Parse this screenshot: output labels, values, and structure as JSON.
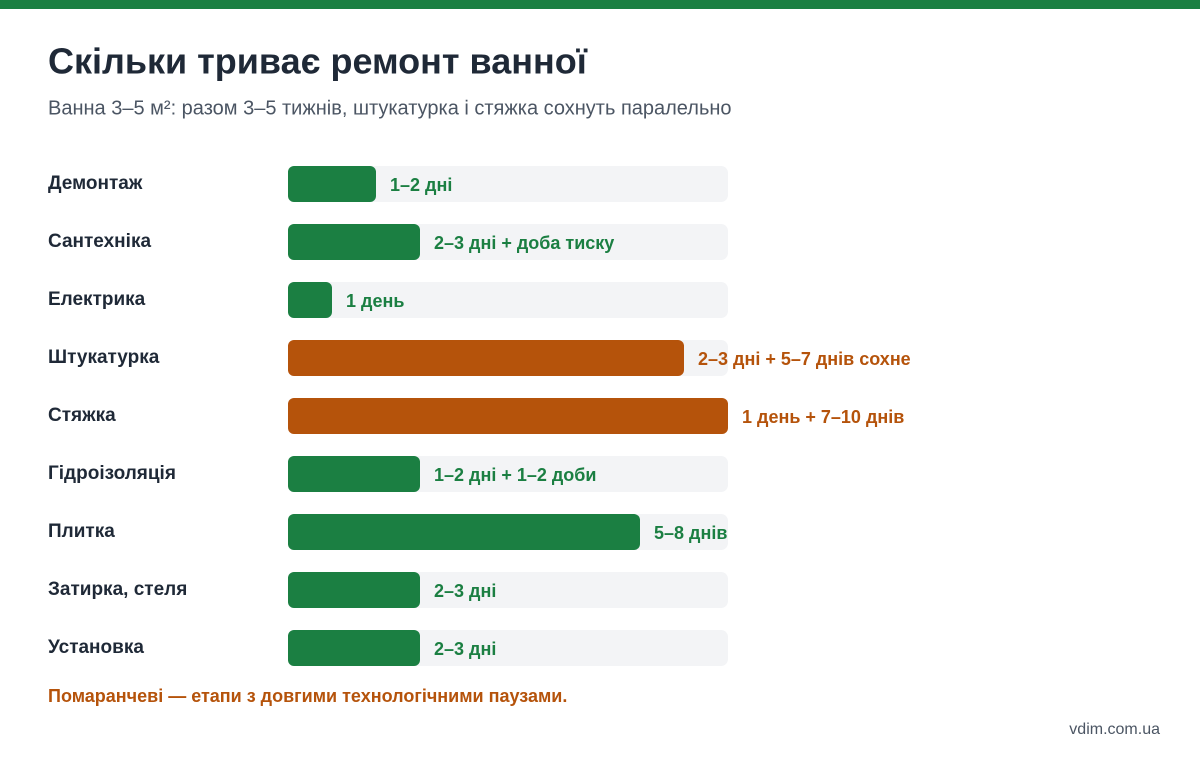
{
  "chart_data": {
    "type": "bar",
    "orientation": "horizontal",
    "title": "Скільки триває ремонт ванної",
    "subtitle": "Ванна 3–5 м²: разом 3–5 тижнів, штукатурка і стяжка сохнуть паралельно",
    "categories": [
      "Демонтаж",
      "Сантехніка",
      "Електрика",
      "Штукатурка",
      "Стяжка",
      "Гідроізоляція",
      "Плитка",
      "Затирка, стеля",
      "Установка"
    ],
    "values": [
      2,
      3,
      1,
      9,
      10,
      3,
      8,
      3,
      3
    ],
    "value_labels": [
      "1–2 дні",
      "2–3 дні + доба тиску",
      "1 день",
      "2–3 дні + 5–7 днів сохне",
      "1 день + 7–10 днів",
      "1–2 дні + 1–2 доби",
      "5–8 днів",
      "2–3 дні",
      "2–3 дні"
    ],
    "colors": [
      "#1b7f42",
      "#1b7f42",
      "#1b7f42",
      "#b5530b",
      "#b5530b",
      "#1b7f42",
      "#1b7f42",
      "#1b7f42",
      "#1b7f42"
    ],
    "xlim": [
      0,
      10
    ],
    "note": "Помаранчеві — етапи з довгими технологічними паузами.",
    "source": "vdim.com.ua"
  }
}
